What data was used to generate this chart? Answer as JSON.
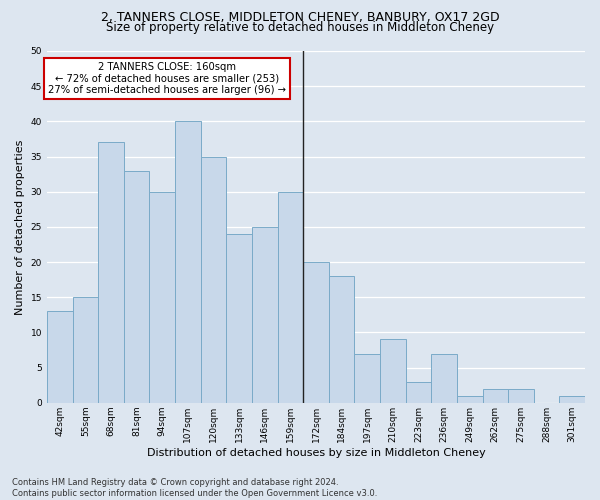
{
  "title_line1": "2, TANNERS CLOSE, MIDDLETON CHENEY, BANBURY, OX17 2GD",
  "title_line2": "Size of property relative to detached houses in Middleton Cheney",
  "xlabel": "Distribution of detached houses by size in Middleton Cheney",
  "ylabel": "Number of detached properties",
  "categories": [
    "42sqm",
    "55sqm",
    "68sqm",
    "81sqm",
    "94sqm",
    "107sqm",
    "120sqm",
    "133sqm",
    "146sqm",
    "159sqm",
    "172sqm",
    "184sqm",
    "197sqm",
    "210sqm",
    "223sqm",
    "236sqm",
    "249sqm",
    "262sqm",
    "275sqm",
    "288sqm",
    "301sqm"
  ],
  "values": [
    13,
    15,
    37,
    33,
    30,
    40,
    35,
    24,
    25,
    30,
    20,
    18,
    7,
    9,
    3,
    7,
    1,
    2,
    2,
    0,
    1
  ],
  "bar_color": "#c8d8ea",
  "bar_edge_color": "#7aaac8",
  "vline_x_index": 10,
  "vline_color": "#222222",
  "annotation_text": "2 TANNERS CLOSE: 160sqm\n← 72% of detached houses are smaller (253)\n27% of semi-detached houses are larger (96) →",
  "annotation_box_facecolor": "#ffffff",
  "annotation_box_edgecolor": "#cc0000",
  "ylim": [
    0,
    50
  ],
  "yticks": [
    0,
    5,
    10,
    15,
    20,
    25,
    30,
    35,
    40,
    45,
    50
  ],
  "footer": "Contains HM Land Registry data © Crown copyright and database right 2024.\nContains public sector information licensed under the Open Government Licence v3.0.",
  "bg_color": "#dde6f0",
  "plot_bg_color": "#dde6f0",
  "grid_color": "#ffffff",
  "title_fontsize": 9,
  "subtitle_fontsize": 8.5,
  "ylabel_fontsize": 8,
  "xlabel_fontsize": 8,
  "tick_fontsize": 6.5,
  "annot_fontsize": 7.2,
  "footer_fontsize": 6
}
